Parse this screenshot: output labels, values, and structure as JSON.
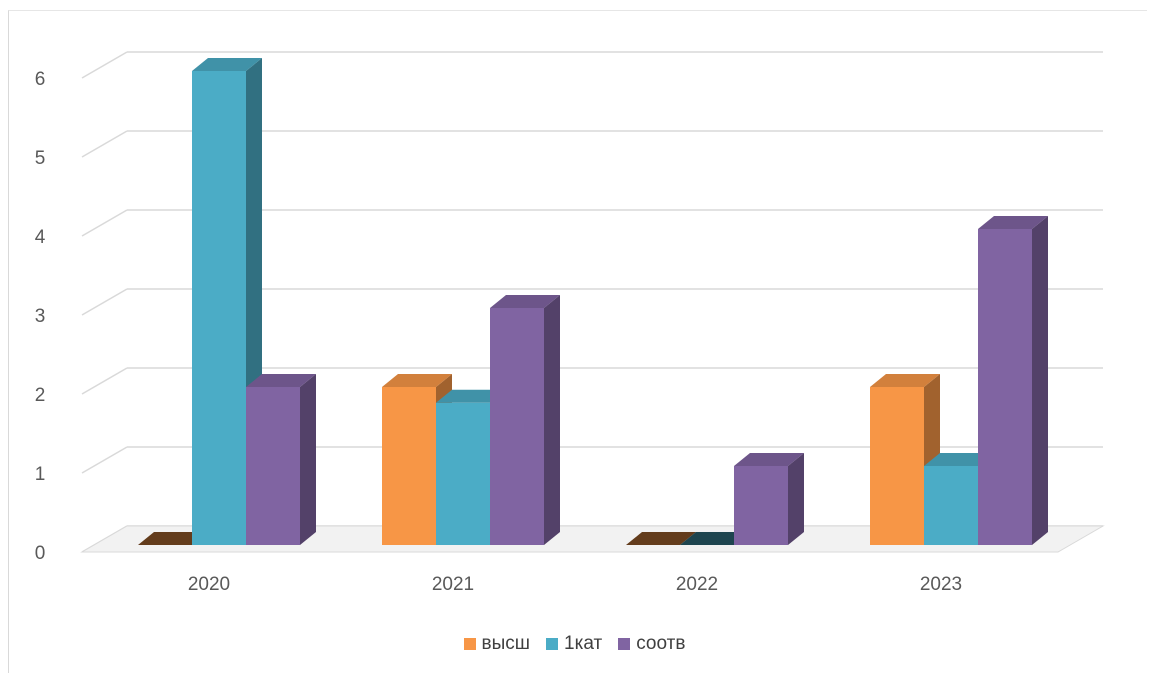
{
  "chart_data": {
    "type": "bar",
    "title": "",
    "xlabel": "",
    "ylabel": "",
    "categories": [
      "2020",
      "2021",
      "2022",
      "2023"
    ],
    "series": [
      {
        "name": "высш",
        "values": [
          0,
          2,
          0,
          2
        ],
        "color": "#f79646"
      },
      {
        "name": "1кат",
        "values": [
          6,
          1.8,
          0,
          1
        ],
        "color": "#4bacc6"
      },
      {
        "name": "соотв",
        "values": [
          2,
          3,
          1,
          4
        ],
        "color": "#8064a2"
      }
    ],
    "ylim": [
      0,
      6
    ],
    "yticks": [
      "0",
      "1",
      "2",
      "3",
      "4",
      "5",
      "6"
    ],
    "grid": true,
    "legend_position": "bottom",
    "style": "3d-clustered-column"
  }
}
